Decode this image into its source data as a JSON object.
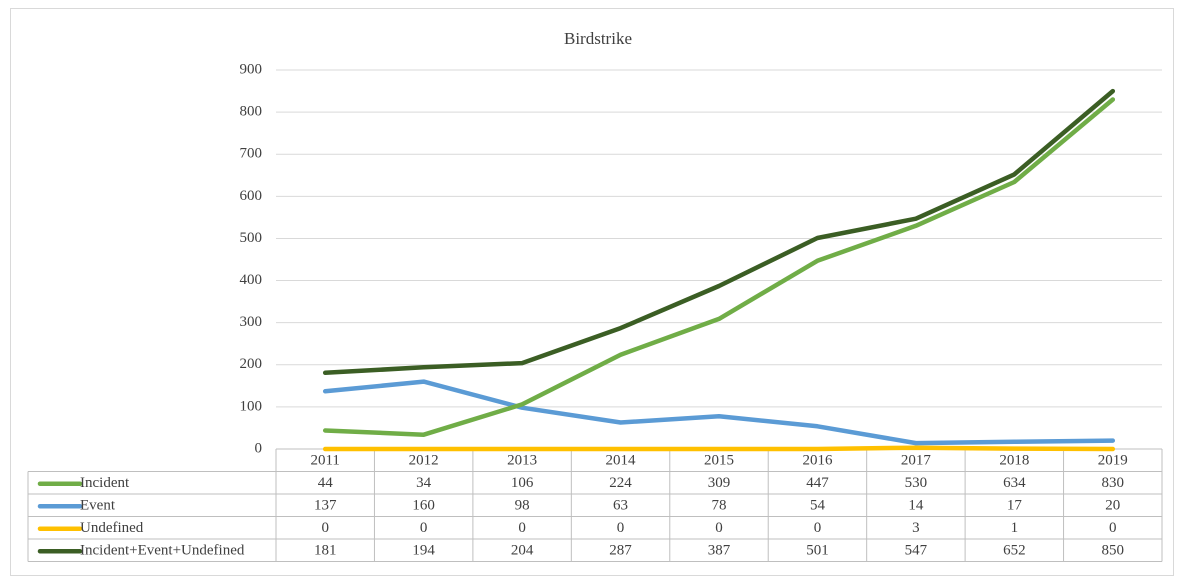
{
  "chart_data": {
    "type": "line",
    "title": "Birdstrike",
    "categories": [
      "2011",
      "2012",
      "2013",
      "2014",
      "2015",
      "2016",
      "2017",
      "2018",
      "2019"
    ],
    "series": [
      {
        "name": "Incident",
        "color": "#70ad47",
        "values": [
          44,
          34,
          106,
          224,
          309,
          447,
          530,
          634,
          830
        ]
      },
      {
        "name": "Event",
        "color": "#5b9bd5",
        "values": [
          137,
          160,
          98,
          63,
          78,
          54,
          14,
          17,
          20
        ]
      },
      {
        "name": "Undefined",
        "color": "#ffc000",
        "values": [
          0,
          0,
          0,
          0,
          0,
          0,
          3,
          1,
          0
        ]
      },
      {
        "name": "Incident+Event+Undefined",
        "color": "#3b5e24",
        "values": [
          181,
          194,
          204,
          287,
          387,
          501,
          547,
          652,
          850
        ]
      }
    ],
    "ylim": [
      0,
      900
    ],
    "yticks": [
      0,
      100,
      200,
      300,
      400,
      500,
      600,
      700,
      800,
      900
    ],
    "grid": true,
    "data_table": true
  }
}
